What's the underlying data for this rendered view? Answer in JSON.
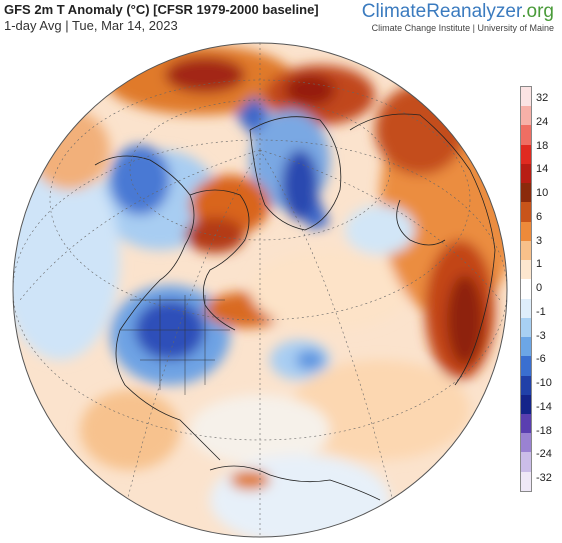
{
  "header": {
    "title": "GFS 2m T Anomaly (°C) [CFSR 1979-2000 baseline]",
    "subtitle": "1-day Avg | Tue, Mar 14, 2023"
  },
  "brand": {
    "name_part1": "Climate",
    "name_part2": "Reanalyzer",
    "name_part3": ".org",
    "affiliation": "Climate Change Institute | University of Maine",
    "color_blue": "#3b7bbf",
    "color_green": "#4a9b3a"
  },
  "colorbar": {
    "ticks": [
      "32",
      "24",
      "18",
      "14",
      "10",
      "6",
      "3",
      "1",
      "0",
      "-1",
      "-3",
      "-6",
      "-10",
      "-14",
      "-18",
      "-24",
      "-32"
    ],
    "colors": [
      "#fbe3e3",
      "#f7b0a8",
      "#ef6e63",
      "#e02a20",
      "#b81d14",
      "#8b2a0c",
      "#c8541a",
      "#ee8a3a",
      "#f8c08a",
      "#fde7cf",
      "#ffffff",
      "#dfeefb",
      "#a8d0f3",
      "#6ca6e6",
      "#3a6fd0",
      "#2040a8",
      "#14248a",
      "#5a3fb0",
      "#9a82d2",
      "#cbbde8",
      "#efe8f7"
    ]
  },
  "map": {
    "projection": "orthographic-north-atlantic",
    "ocean_base": "#fde9d6"
  }
}
